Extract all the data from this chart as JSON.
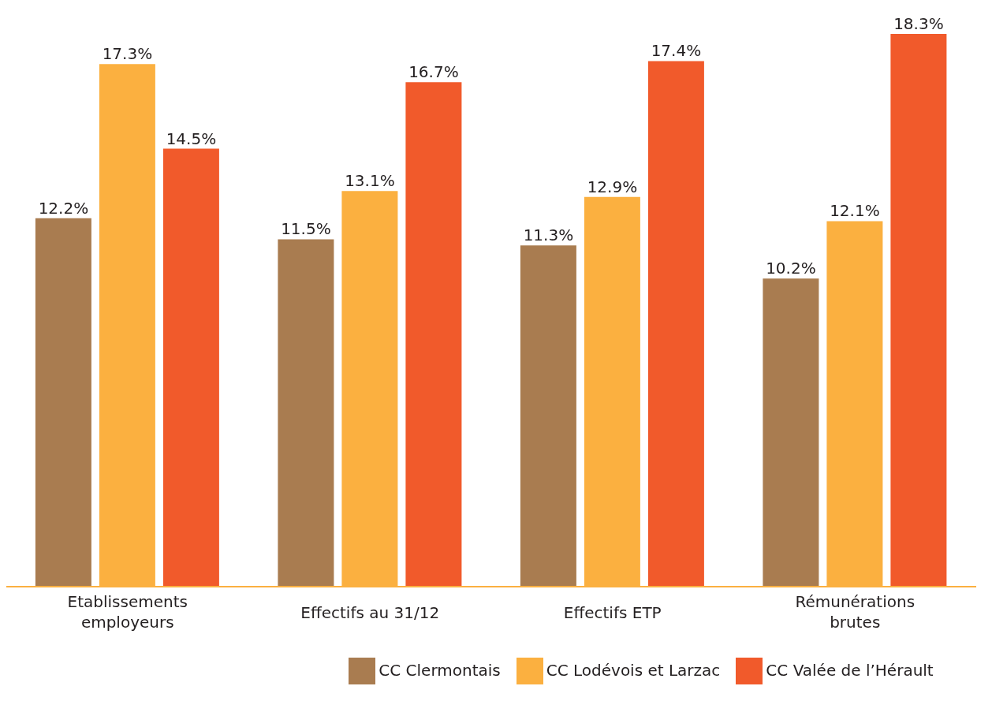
{
  "chart_data": {
    "type": "bar",
    "categories": [
      "Etablissements employeurs",
      "Effectifs au 31/12",
      "Effectifs ETP",
      "Rémunérations brutes"
    ],
    "series": [
      {
        "name": "CC Clermontais",
        "color": "#a97c50",
        "values": [
          12.2,
          11.5,
          11.3,
          10.2
        ],
        "value_labels": [
          "12.2%",
          "11.5%",
          "11.3%",
          "10.2%"
        ]
      },
      {
        "name": "CC Lodévois et Larzac",
        "color": "#fbb040",
        "values": [
          17.3,
          13.1,
          12.9,
          12.1
        ],
        "value_labels": [
          "17.3%",
          "13.1%",
          "12.9%",
          "12.1%"
        ]
      },
      {
        "name": "CC Valée de l’Hérault",
        "color": "#f15a2b",
        "values": [
          14.5,
          16.7,
          17.4,
          18.3
        ],
        "value_labels": [
          "14.5%",
          "16.7%",
          "17.4%",
          "18.3%"
        ]
      }
    ],
    "legend": "bottom",
    "grid": false
  }
}
